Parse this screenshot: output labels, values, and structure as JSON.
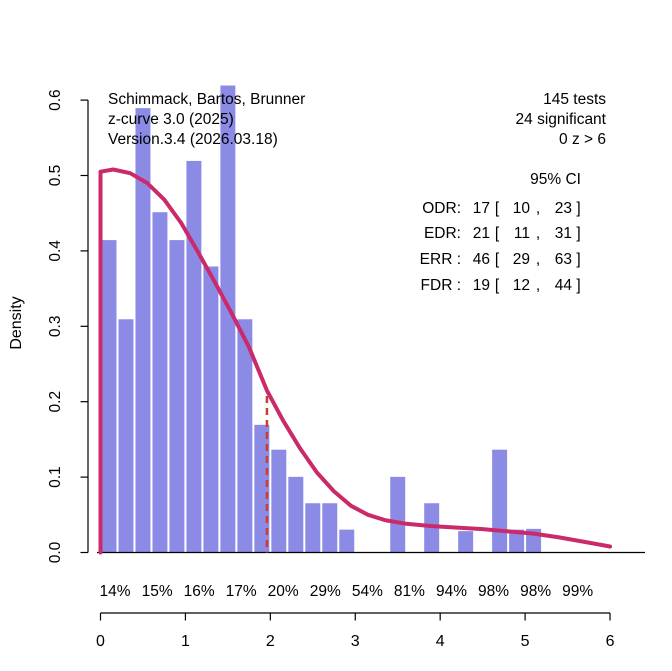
{
  "title_block": {
    "line1": "Schimmack, Bartos, Brunner",
    "line2": "z-curve 3.0 (2025)",
    "line3": "Version.3.4 (2026.03.18)"
  },
  "stats_block": {
    "line1": "145 tests",
    "line2": "24 significant",
    "line3": "0 z > 6"
  },
  "ci_table": {
    "header": "95% CI",
    "format": {
      "open": "[",
      "sep": ",",
      "close": "]"
    },
    "rows": [
      {
        "label": "ODR:",
        "est": "17",
        "lo": "10",
        "hi": "23"
      },
      {
        "label": "EDR:",
        "est": "21",
        "lo": "11",
        "hi": "31"
      },
      {
        "label": "ERR :",
        "est": "46",
        "lo": "29",
        "hi": "63"
      },
      {
        "label": "FDR :",
        "est": "19",
        "lo": "12",
        "hi": "44"
      }
    ]
  },
  "colors": {
    "bar_fill": "#8B8BE6",
    "bar_separator": "#FFFFFF",
    "curve": "#CB2A6A",
    "significance_line": "#CC3C30",
    "axis": "#000000"
  },
  "chart_data": {
    "type": "bar",
    "title": "",
    "xlabel": "",
    "ylabel": "Density",
    "xlim": [
      0,
      6
    ],
    "ylim": [
      0,
      0.6
    ],
    "grid": false,
    "x_ticks": [
      0,
      1,
      2,
      3,
      4,
      5,
      6
    ],
    "x_tick_labels": [
      "0",
      "1",
      "2",
      "3",
      "4",
      "5",
      "6"
    ],
    "y_ticks": [
      0.0,
      0.1,
      0.2,
      0.3,
      0.4,
      0.5,
      0.6
    ],
    "y_tick_labels": [
      "0.0",
      "0.1",
      "0.2",
      "0.3",
      "0.4",
      "0.5",
      "0.6"
    ],
    "bin_width": 0.2,
    "bars": [
      {
        "z_start": 0.0,
        "density": 0.415
      },
      {
        "z_start": 0.2,
        "density": 0.31
      },
      {
        "z_start": 0.4,
        "density": 0.59
      },
      {
        "z_start": 0.6,
        "density": 0.452
      },
      {
        "z_start": 0.8,
        "density": 0.415
      },
      {
        "z_start": 1.0,
        "density": 0.52
      },
      {
        "z_start": 1.2,
        "density": 0.38
      },
      {
        "z_start": 1.4,
        "density": 0.62
      },
      {
        "z_start": 1.6,
        "density": 0.31
      },
      {
        "z_start": 1.8,
        "density": 0.17
      },
      {
        "z_start": 2.0,
        "density": 0.137
      },
      {
        "z_start": 2.2,
        "density": 0.101
      },
      {
        "z_start": 2.4,
        "density": 0.066
      },
      {
        "z_start": 2.6,
        "density": 0.066
      },
      {
        "z_start": 2.8,
        "density": 0.031
      },
      {
        "z_start": 3.0,
        "density": 0.0
      },
      {
        "z_start": 3.2,
        "density": 0.0
      },
      {
        "z_start": 3.4,
        "density": 0.101
      },
      {
        "z_start": 3.6,
        "density": 0.0
      },
      {
        "z_start": 3.8,
        "density": 0.066
      },
      {
        "z_start": 4.0,
        "density": 0.0
      },
      {
        "z_start": 4.2,
        "density": 0.029
      },
      {
        "z_start": 4.4,
        "density": 0.0
      },
      {
        "z_start": 4.6,
        "density": 0.137
      },
      {
        "z_start": 4.8,
        "density": 0.031
      },
      {
        "z_start": 5.0,
        "density": 0.032
      },
      {
        "z_start": 5.2,
        "density": 0.0
      },
      {
        "z_start": 5.4,
        "density": 0.0
      },
      {
        "z_start": 5.6,
        "density": 0.0
      },
      {
        "z_start": 5.8,
        "density": 0.0
      }
    ],
    "curve": [
      [
        0.0,
        0.505
      ],
      [
        0.15,
        0.508
      ],
      [
        0.35,
        0.503
      ],
      [
        0.55,
        0.49
      ],
      [
        0.75,
        0.468
      ],
      [
        0.95,
        0.437
      ],
      [
        1.15,
        0.398
      ],
      [
        1.35,
        0.358
      ],
      [
        1.55,
        0.316
      ],
      [
        1.75,
        0.272
      ],
      [
        1.96,
        0.215
      ],
      [
        2.15,
        0.175
      ],
      [
        2.35,
        0.138
      ],
      [
        2.55,
        0.106
      ],
      [
        2.75,
        0.081
      ],
      [
        2.95,
        0.062
      ],
      [
        3.15,
        0.05
      ],
      [
        3.35,
        0.043
      ],
      [
        3.6,
        0.038
      ],
      [
        3.9,
        0.035
      ],
      [
        4.2,
        0.033
      ],
      [
        4.5,
        0.031
      ],
      [
        4.8,
        0.028
      ],
      [
        5.1,
        0.025
      ],
      [
        5.4,
        0.02
      ],
      [
        5.7,
        0.014
      ],
      [
        6.0,
        0.008
      ]
    ],
    "significance_line_z": 1.96,
    "percent_labels": [
      "14%",
      "15%",
      "16%",
      "17%",
      "20%",
      "29%",
      "54%",
      "81%",
      "94%",
      "98%",
      "98%",
      "99%"
    ]
  }
}
